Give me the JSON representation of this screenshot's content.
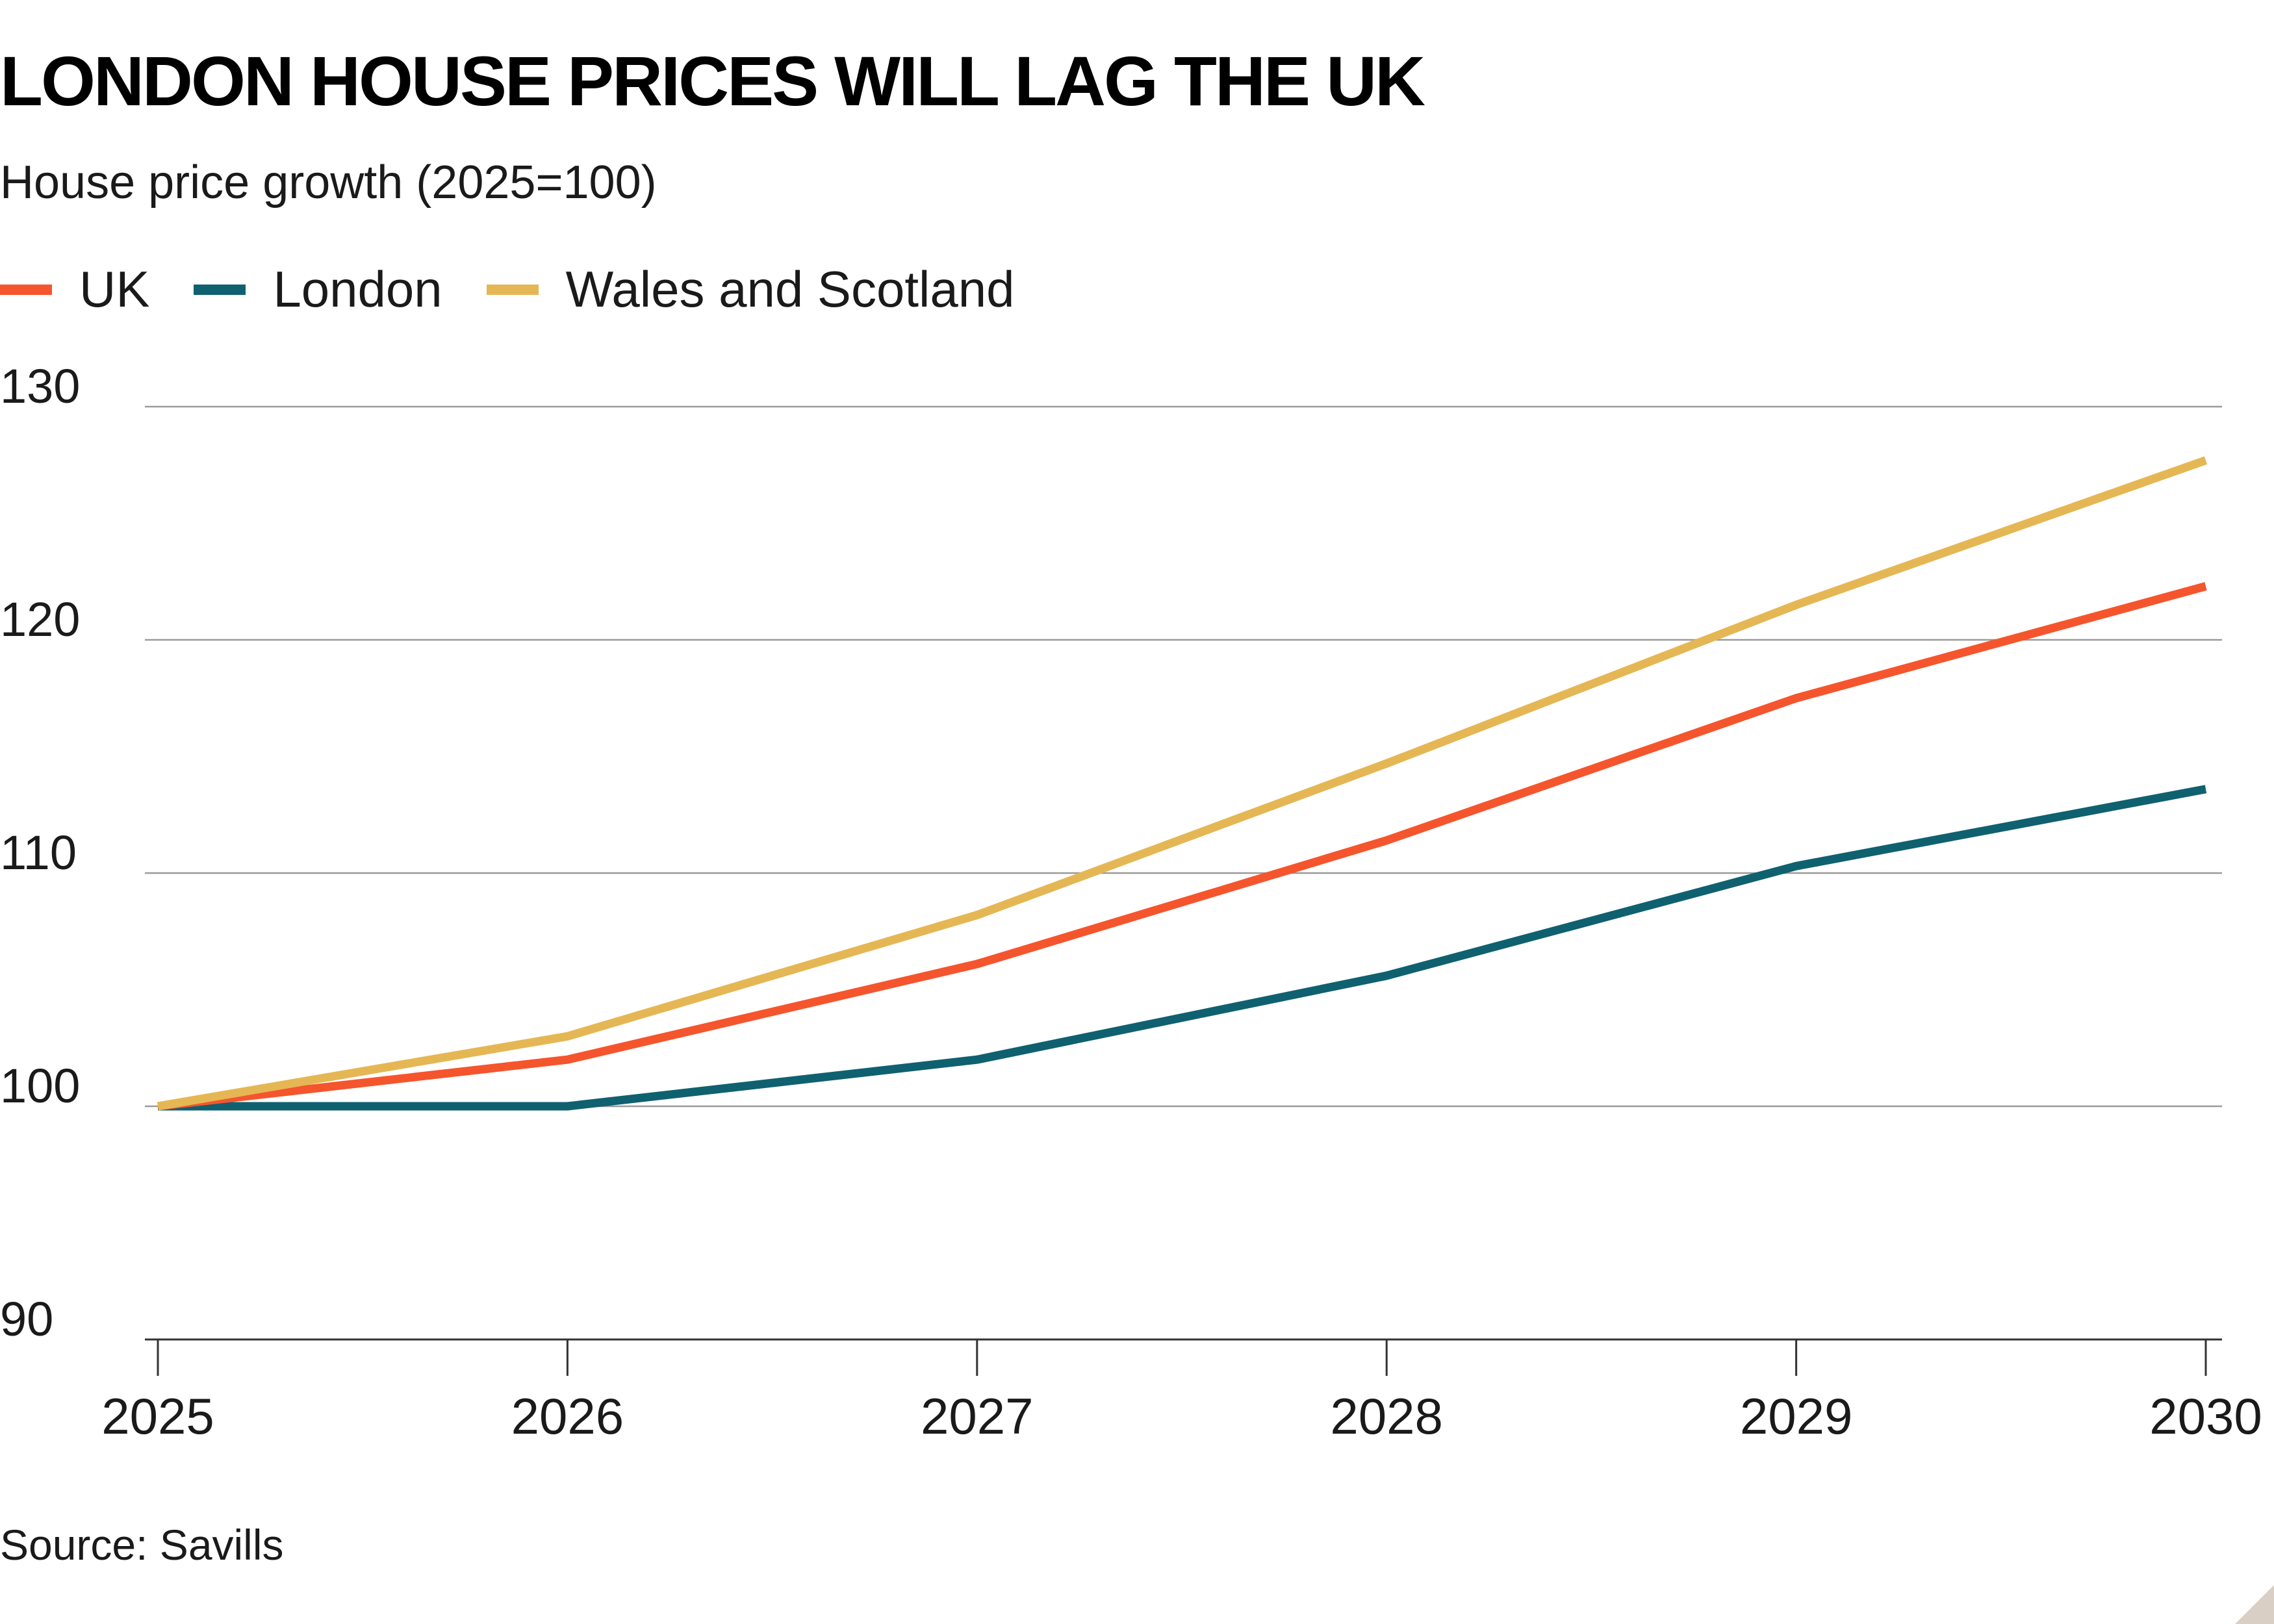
{
  "title": "LONDON HOUSE PRICES WILL LAG THE UK",
  "subtitle": "House price growth (2025=100)",
  "source": "Source: Savills",
  "colors": {
    "uk": "#f5552d",
    "london": "#0f6170",
    "wales_scotland": "#e5b754",
    "grid": "#9a9a9a",
    "axis": "#333333"
  },
  "chart_data": {
    "type": "line",
    "title": "LONDON HOUSE PRICES WILL LAG THE UK",
    "subtitle": "House price growth (2025=100)",
    "xlabel": "",
    "ylabel": "",
    "x": [
      "2025",
      "2026",
      "2027",
      "2028",
      "2029",
      "2030"
    ],
    "ylim": [
      90,
      130
    ],
    "yticks": [
      90,
      100,
      110,
      120,
      130
    ],
    "grid": true,
    "legend_position": "top-left",
    "series": [
      {
        "name": "UK",
        "color": "#f5552d",
        "values": [
          100,
          102,
          106.1,
          111.4,
          117.5,
          122.3
        ]
      },
      {
        "name": "London",
        "color": "#0f6170",
        "values": [
          100,
          100,
          102,
          105.6,
          110.3,
          113.6
        ]
      },
      {
        "name": "Wales and Scotland",
        "color": "#e5b754",
        "values": [
          100,
          103,
          108.2,
          114.7,
          121.5,
          127.7
        ]
      }
    ]
  }
}
